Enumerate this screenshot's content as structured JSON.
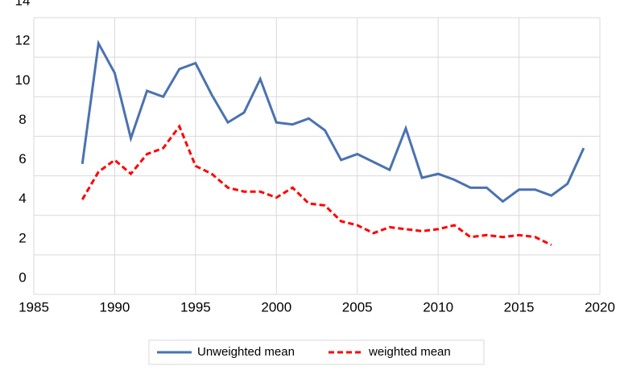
{
  "chart_data": {
    "type": "line",
    "x": [
      1988,
      1989,
      1990,
      1991,
      1992,
      1993,
      1994,
      1995,
      1996,
      1997,
      1998,
      1999,
      2000,
      2001,
      2002,
      2003,
      2004,
      2005,
      2006,
      2007,
      2008,
      2009,
      2010,
      2011,
      2012,
      2013,
      2014,
      2015,
      2016,
      2017,
      2018,
      2019
    ],
    "series": [
      {
        "name": "Unweighted mean",
        "color": "#4a72b0",
        "dash": "solid",
        "values": [
          6.6,
          12.7,
          11.2,
          7.9,
          10.3,
          10.0,
          11.4,
          11.7,
          10.1,
          8.7,
          9.2,
          10.9,
          8.7,
          8.6,
          8.9,
          8.3,
          6.8,
          7.1,
          6.7,
          6.3,
          8.4,
          5.9,
          6.1,
          5.8,
          5.4,
          5.4,
          4.7,
          5.3,
          5.3,
          5.0,
          5.6,
          7.4
        ]
      },
      {
        "name": "weighted mean",
        "color": "#ff0000",
        "dash": "dashed",
        "values": [
          4.8,
          6.2,
          6.8,
          6.1,
          7.1,
          7.4,
          8.5,
          6.5,
          6.1,
          5.4,
          5.2,
          5.2,
          4.9,
          5.4,
          4.6,
          4.5,
          3.7,
          3.5,
          3.1,
          3.4,
          3.3,
          3.2,
          3.3,
          3.5,
          2.9,
          3.0,
          2.9,
          3.0,
          2.9,
          2.5,
          null,
          null
        ]
      }
    ],
    "xlim": [
      1985,
      2020
    ],
    "xticks": [
      1985,
      1990,
      1995,
      2000,
      2005,
      2010,
      2015,
      2020
    ],
    "ylim": [
      0,
      14
    ],
    "yticks": [
      0,
      2,
      4,
      6,
      8,
      10,
      12,
      14
    ],
    "grid": true,
    "legend": "bottom"
  }
}
